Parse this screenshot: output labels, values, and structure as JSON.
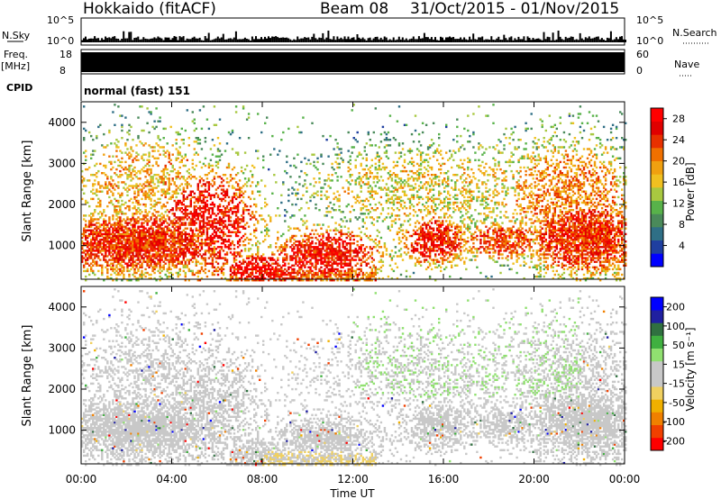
{
  "header": {
    "station": "Hokkaido (fitACF)",
    "beam": "Beam 08",
    "date_range": "31/Oct/2015 - 01/Nov/2015"
  },
  "strips": {
    "nsky": {
      "label": "N.Sky",
      "ticks": [
        "10^5",
        "10^0"
      ]
    },
    "nsearch": {
      "label": "N.Search",
      "ticks": [
        "10^5",
        "10^0"
      ]
    },
    "freq": {
      "label": "Freq.",
      "unit": "[MHz]",
      "ticks": [
        "18",
        "8"
      ]
    },
    "nave": {
      "label": "Nave",
      "ticks": [
        "60",
        "0"
      ]
    },
    "cpid": {
      "label": "CPID",
      "value": "normal (fast) 151"
    }
  },
  "chart_data": [
    {
      "type": "heatmap",
      "name": "power",
      "ylabel": "Slant Range [km]",
      "yticks": [
        "4000",
        "3000",
        "2000",
        "1000"
      ],
      "ylim": [
        180,
        4500
      ],
      "colorbar_label": "Power [dB]",
      "colorbar_ticks": [
        "28",
        "24",
        "20",
        "16",
        "12",
        "8",
        "4"
      ],
      "colorbar_range": [
        0,
        30
      ],
      "colors": [
        "#0000ff",
        "#1f3fa0",
        "#2f6f86",
        "#4a8a5a",
        "#58b24a",
        "#a8c840",
        "#f0c020",
        "#f0a010",
        "#f07000",
        "#e83000",
        "#e00000",
        "#ff0000"
      ]
    },
    {
      "type": "heatmap",
      "name": "velocity",
      "ylabel": "Slant Range [km]",
      "yticks": [
        "4000",
        "3000",
        "2000",
        "1000"
      ],
      "ylim": [
        180,
        4500
      ],
      "colorbar_label": "Velocity [m s⁻¹]",
      "colorbar_ticks": [
        "200",
        "100",
        "50",
        "15",
        "-15",
        "-50",
        "-100",
        "-200"
      ],
      "colorbar_range": [
        -250,
        250
      ],
      "colors": [
        "#ff0000",
        "#f04000",
        "#f08000",
        "#f0b000",
        "#f0d060",
        "#c8c8c8",
        "#c8c8c8",
        "#90e070",
        "#40b040",
        "#307040",
        "#2020a0",
        "#0000ff"
      ]
    }
  ],
  "time_axis": {
    "label": "Time UT",
    "ticks": [
      "00:00",
      "04:00",
      "08:00",
      "12:00",
      "16:00",
      "20:00",
      "00:00"
    ]
  }
}
